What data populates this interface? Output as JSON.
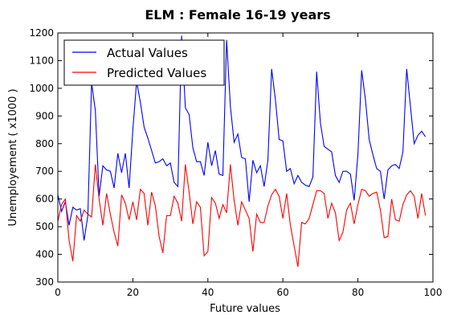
{
  "chart_data": {
    "type": "line",
    "title": "ELM : Female 16-19 years",
    "xlabel": "Future values",
    "ylabel": "Unemployement ( x1000 )",
    "xlim": [
      0,
      100
    ],
    "ylim": [
      300,
      1200
    ],
    "xticks": [
      0,
      20,
      40,
      60,
      80,
      100
    ],
    "yticks": [
      300,
      400,
      500,
      600,
      700,
      800,
      900,
      1000,
      1100,
      1200
    ],
    "grid": false,
    "legend": {
      "placement": "top-left"
    },
    "series": [
      {
        "name": "Actual Values",
        "color": "#0000ff",
        "values": [
          615,
          555,
          590,
          505,
          570,
          560,
          565,
          450,
          540,
          1020,
          920,
          610,
          720,
          705,
          700,
          640,
          765,
          695,
          765,
          640,
          850,
          1025,
          950,
          860,
          820,
          775,
          730,
          735,
          745,
          720,
          730,
          660,
          645,
          1190,
          930,
          905,
          785,
          735,
          735,
          685,
          805,
          720,
          775,
          690,
          685,
          1175,
          935,
          805,
          835,
          750,
          745,
          590,
          740,
          695,
          720,
          645,
          740,
          1070,
          960,
          815,
          810,
          700,
          710,
          655,
          685,
          660,
          650,
          645,
          680,
          1060,
          875,
          790,
          780,
          770,
          685,
          660,
          700,
          700,
          690,
          595,
          760,
          1065,
          960,
          815,
          760,
          710,
          700,
          600,
          705,
          720,
          725,
          710,
          770,
          1070,
          935,
          800,
          830,
          845,
          825
        ],
        "x": [
          0,
          1,
          2,
          3,
          4,
          5,
          6,
          7,
          8,
          9,
          10,
          11,
          12,
          13,
          14,
          15,
          16,
          17,
          18,
          19,
          20,
          21,
          22,
          23,
          24,
          25,
          26,
          27,
          28,
          29,
          30,
          31,
          32,
          33,
          34,
          35,
          36,
          37,
          38,
          39,
          40,
          41,
          42,
          43,
          44,
          45,
          46,
          47,
          48,
          49,
          50,
          51,
          52,
          53,
          54,
          55,
          56,
          57,
          58,
          59,
          60,
          61,
          62,
          63,
          64,
          65,
          66,
          67,
          68,
          69,
          70,
          71,
          72,
          73,
          74,
          75,
          76,
          77,
          78,
          79,
          80,
          81,
          82,
          83,
          84,
          85,
          86,
          87,
          88,
          89,
          90,
          91,
          92,
          93,
          94,
          95,
          96,
          97,
          98
        ]
      },
      {
        "name": "Predicted Values",
        "color": "#ff0000",
        "values": [
          520,
          580,
          600,
          450,
          375,
          540,
          520,
          560,
          545,
          535,
          725,
          600,
          505,
          620,
          545,
          480,
          430,
          615,
          585,
          525,
          590,
          525,
          635,
          620,
          505,
          625,
          575,
          465,
          405,
          540,
          540,
          610,
          585,
          520,
          725,
          625,
          510,
          590,
          570,
          395,
          410,
          605,
          585,
          530,
          580,
          550,
          725,
          595,
          505,
          590,
          560,
          530,
          410,
          545,
          515,
          515,
          575,
          615,
          635,
          610,
          530,
          620,
          505,
          430,
          355,
          515,
          510,
          530,
          580,
          630,
          630,
          620,
          530,
          585,
          550,
          450,
          480,
          560,
          585,
          510,
          580,
          635,
          630,
          610,
          620,
          625,
          560,
          460,
          465,
          600,
          525,
          520,
          580,
          615,
          630,
          610,
          530,
          620,
          540
        ],
        "x": [
          0,
          1,
          2,
          3,
          4,
          5,
          6,
          7,
          8,
          9,
          10,
          11,
          12,
          13,
          14,
          15,
          16,
          17,
          18,
          19,
          20,
          21,
          22,
          23,
          24,
          25,
          26,
          27,
          28,
          29,
          30,
          31,
          32,
          33,
          34,
          35,
          36,
          37,
          38,
          39,
          40,
          41,
          42,
          43,
          44,
          45,
          46,
          47,
          48,
          49,
          50,
          51,
          52,
          53,
          54,
          55,
          56,
          57,
          58,
          59,
          60,
          61,
          62,
          63,
          64,
          65,
          66,
          67,
          68,
          69,
          70,
          71,
          72,
          73,
          74,
          75,
          76,
          77,
          78,
          79,
          80,
          81,
          82,
          83,
          84,
          85,
          86,
          87,
          88,
          89,
          90,
          91,
          92,
          93,
          94,
          95,
          96,
          97,
          98
        ]
      }
    ]
  }
}
